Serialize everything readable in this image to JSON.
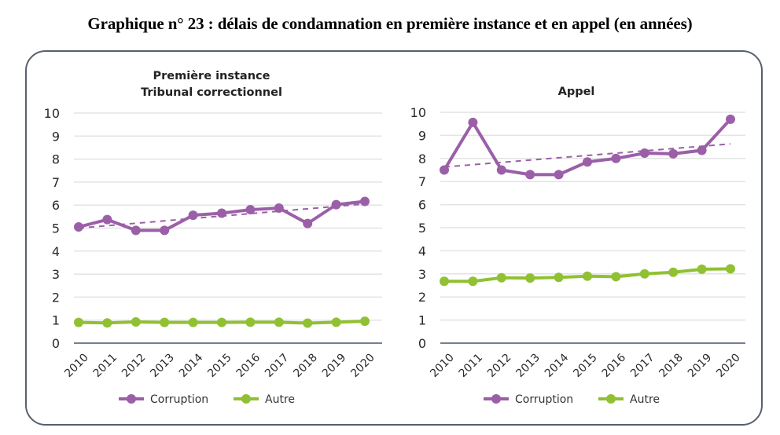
{
  "title": "Graphique n° 23 : délais de condamnation en première instance et en appel (en années)",
  "colors": {
    "corruption": "#9b5fa8",
    "autre": "#90c132",
    "grid": "#e3e3e3",
    "axis": "#4a5568",
    "frame": "#58606e"
  },
  "chart_data": [
    {
      "type": "line",
      "title_lines": [
        "Première instance",
        "Tribunal correctionnel"
      ],
      "x": [
        "2010",
        "2011",
        "2012",
        "2013",
        "2014",
        "2015",
        "2016",
        "2017",
        "2018",
        "2019",
        "2020"
      ],
      "yticks": [
        "0",
        "1",
        "2",
        "3",
        "4",
        "5",
        "6",
        "7",
        "8",
        "9",
        "10"
      ],
      "ylim": [
        0,
        10
      ],
      "grid": true,
      "legend_position": "bottom-center",
      "xlabel": "",
      "ylabel": "",
      "series": [
        {
          "name": "Corruption",
          "values": [
            5.05,
            5.37,
            4.9,
            4.9,
            5.56,
            5.65,
            5.8,
            5.87,
            5.2,
            6.02,
            6.16
          ]
        },
        {
          "name": "Autre",
          "values": [
            0.9,
            0.88,
            0.92,
            0.9,
            0.9,
            0.9,
            0.91,
            0.91,
            0.87,
            0.91,
            0.95
          ]
        }
      ],
      "trendline": {
        "series": "Corruption",
        "start": 5.0,
        "end": 6.05,
        "style": "dashed"
      }
    },
    {
      "type": "line",
      "title_lines": [
        "Appel"
      ],
      "x": [
        "2010",
        "2011",
        "2012",
        "2013",
        "2014",
        "2015",
        "2016",
        "2017",
        "2018",
        "2019",
        "2020"
      ],
      "yticks": [
        "0",
        "1",
        "2",
        "3",
        "4",
        "5",
        "6",
        "7",
        "8",
        "9",
        "10"
      ],
      "ylim": [
        0,
        10
      ],
      "grid": true,
      "legend_position": "bottom-center",
      "xlabel": "",
      "ylabel": "",
      "series": [
        {
          "name": "Corruption",
          "values": [
            7.5,
            9.56,
            7.5,
            7.3,
            7.3,
            7.85,
            8.0,
            8.23,
            8.2,
            8.35,
            9.7
          ]
        },
        {
          "name": "Autre",
          "values": [
            2.68,
            2.68,
            2.83,
            2.82,
            2.85,
            2.9,
            2.88,
            3.0,
            3.07,
            3.2,
            3.22
          ]
        }
      ],
      "trendline": {
        "series": "Corruption",
        "start": 7.63,
        "end": 8.63,
        "style": "dashed"
      }
    }
  ],
  "legend": [
    {
      "name": "Corruption",
      "color_key": "corruption"
    },
    {
      "name": "Autre",
      "color_key": "autre"
    }
  ]
}
